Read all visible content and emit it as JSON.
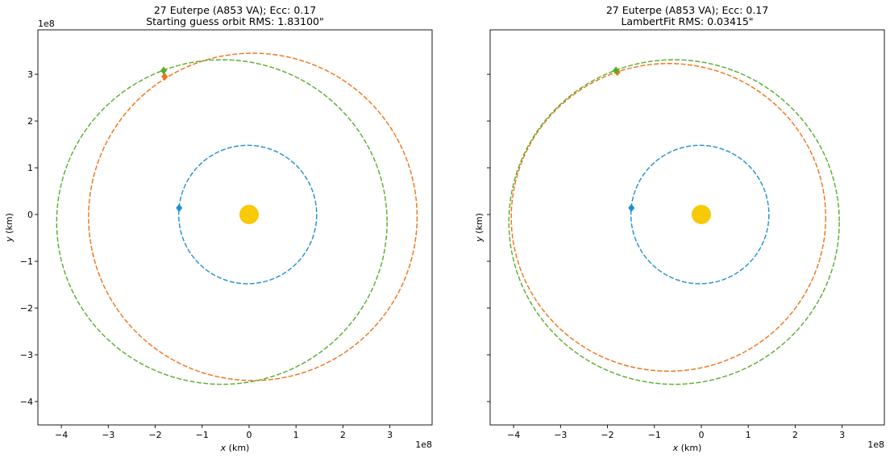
{
  "chart_data": [
    {
      "type": "line",
      "title_line1": "27 Euterpe (A853 VA); Ecc: 0.17",
      "title_line2": "Starting guess orbit RMS: 1.83100\"",
      "xlabel_var": "x",
      "xlabel_unit": " (km)",
      "ylabel_var": "y",
      "ylabel_unit": " (km)",
      "x_offset_text": "1e8",
      "y_offset_text": "1e8",
      "xlim": [
        -4.5,
        3.9
      ],
      "ylim": [
        -4.5,
        3.95
      ],
      "xticks": [
        -4,
        -3,
        -2,
        -1,
        0,
        1,
        2,
        3
      ],
      "yticks": [
        -4,
        -3,
        -2,
        -1,
        0,
        1,
        2,
        3
      ],
      "xtick_labels": [
        "−4",
        "−3",
        "−2",
        "−1",
        "0",
        "1",
        "2",
        "3"
      ],
      "ytick_labels": [
        "−4",
        "−3",
        "−2",
        "−1",
        "0",
        "1",
        "2",
        "3"
      ],
      "show_ytick_labels": true,
      "sun": {
        "x": 0.0,
        "y": 0.0,
        "color": "#f8c905"
      },
      "series": [
        {
          "color": "#1f8fcf",
          "ellipse": {
            "cx": -0.03,
            "cy": 0.0,
            "rx": 1.47,
            "ry": 1.48
          },
          "marker": {
            "x": -1.49,
            "y": 0.14,
            "shape": "diamond"
          }
        },
        {
          "color": "#ef7116",
          "ellipse": {
            "cx": 0.08,
            "cy": -0.05,
            "rx": 3.5,
            "ry": 3.5
          },
          "marker": {
            "x": -1.8,
            "y": 2.95,
            "shape": "diamond"
          }
        },
        {
          "color": "#58ac2c",
          "ellipse": {
            "cx": -0.58,
            "cy": -0.16,
            "rx": 3.52,
            "ry": 3.47
          },
          "marker": {
            "x": -1.82,
            "y": 3.08,
            "shape": "diamond"
          }
        }
      ]
    },
    {
      "type": "line",
      "title_line1": "27 Euterpe (A853 VA); Ecc: 0.17",
      "title_line2": "LambertFit RMS: 0.03415\"",
      "xlabel_var": "x",
      "xlabel_unit": " (km)",
      "ylabel_var": "y",
      "ylabel_unit": " (km)",
      "x_offset_text": "1e8",
      "y_offset_text": "",
      "xlim": [
        -4.5,
        3.9
      ],
      "ylim": [
        -4.5,
        3.95
      ],
      "xticks": [
        -4,
        -3,
        -2,
        -1,
        0,
        1,
        2,
        3
      ],
      "yticks": [
        -4,
        -3,
        -2,
        -1,
        0,
        1,
        2,
        3
      ],
      "xtick_labels": [
        "−4",
        "−3",
        "−2",
        "−1",
        "0",
        "1",
        "2",
        "3"
      ],
      "ytick_labels": [],
      "show_ytick_labels": false,
      "sun": {
        "x": 0.0,
        "y": 0.0,
        "color": "#f8c905"
      },
      "series": [
        {
          "color": "#1f8fcf",
          "ellipse": {
            "cx": -0.03,
            "cy": 0.0,
            "rx": 1.47,
            "ry": 1.48
          },
          "marker": {
            "x": -1.49,
            "y": 0.14,
            "shape": "diamond"
          }
        },
        {
          "color": "#ef7116",
          "ellipse": {
            "cx": -0.7,
            "cy": -0.06,
            "rx": 3.35,
            "ry": 3.29
          },
          "marker": {
            "x": -1.79,
            "y": 3.05,
            "shape": "diamond"
          }
        },
        {
          "color": "#58ac2c",
          "ellipse": {
            "cx": -0.58,
            "cy": -0.16,
            "rx": 3.52,
            "ry": 3.47
          },
          "marker": {
            "x": -1.82,
            "y": 3.08,
            "shape": "diamond"
          }
        }
      ]
    }
  ]
}
